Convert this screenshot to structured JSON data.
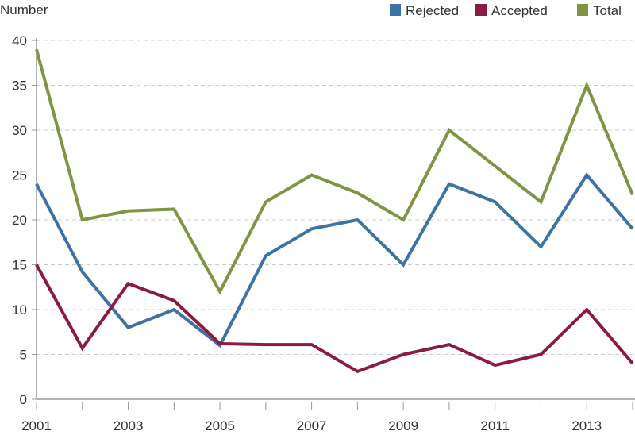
{
  "chart_data": {
    "type": "line",
    "ylabel": "Number",
    "xlabel": "",
    "x": [
      2001,
      2002,
      2003,
      2004,
      2005,
      2006,
      2007,
      2008,
      2009,
      2010,
      2011,
      2012,
      2013,
      2014
    ],
    "x_tick_labels": [
      "2001",
      "2003",
      "2005",
      "2007",
      "2009",
      "2011",
      "2013"
    ],
    "y_ticks": [
      0,
      5,
      10,
      15,
      20,
      25,
      30,
      35,
      40
    ],
    "ylim": [
      0,
      40
    ],
    "grid": "horizontal dashed",
    "legend_position": "top-right",
    "series": [
      {
        "name": "Rejected",
        "color": "#3d72a5",
        "values": [
          24,
          14.2,
          8,
          10,
          6,
          16,
          19,
          20,
          15,
          24,
          22,
          17,
          25,
          19
        ]
      },
      {
        "name": "Accepted",
        "color": "#8b1a47",
        "values": [
          15,
          5.7,
          12.9,
          11,
          6.2,
          6.1,
          6.1,
          3.1,
          5,
          6.1,
          3.8,
          5,
          10,
          4
        ]
      },
      {
        "name": "Total",
        "color": "#7f9543",
        "values": [
          39,
          20,
          21,
          21.2,
          12,
          22,
          25,
          23,
          20,
          30,
          26,
          22,
          35,
          22.8
        ]
      }
    ]
  }
}
